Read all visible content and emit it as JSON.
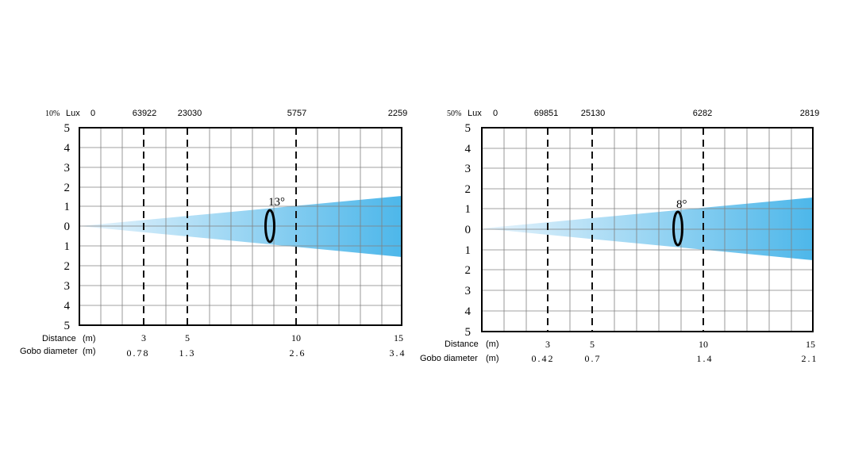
{
  "panels": [
    {
      "lux_prefix": "10%",
      "lux_label": "Lux",
      "lux_values": [
        "0",
        "63922",
        "23030",
        "5757",
        "2259"
      ],
      "y_ticks": [
        "5",
        "4",
        "3",
        "2",
        "1",
        "0",
        "1",
        "2",
        "3",
        "4",
        "5"
      ],
      "angle_label": "13°",
      "distance_label": "Distance",
      "gobo_label": "Gobo diameter",
      "unit": "(m)",
      "distances": [
        "3",
        "5",
        "10",
        "15"
      ],
      "diameters": [
        "0.78",
        "1.3",
        "2.6",
        "3.4"
      ],
      "distance_values": [
        3,
        5,
        10,
        15
      ],
      "max_distance": 15,
      "half_height_at_max": 1.5,
      "colors": {
        "beam_start": "#e8f4fc",
        "beam_end": "#4db7ea",
        "grid": "#808080",
        "frame": "#000000"
      }
    },
    {
      "lux_prefix": "50%",
      "lux_label": "Lux",
      "lux_values": [
        "0",
        "69851",
        "25130",
        "6282",
        "2819"
      ],
      "y_ticks": [
        "5",
        "4",
        "3",
        "2",
        "1",
        "0",
        "1",
        "2",
        "3",
        "4",
        "5"
      ],
      "angle_label": "8°",
      "distance_label": "Distance",
      "gobo_label": "Gobo diameter",
      "unit": "(m)",
      "distances": [
        "3",
        "5",
        "10",
        "15"
      ],
      "diameters": [
        "0.42",
        "0.7",
        "1.4",
        "2.1"
      ],
      "distance_values": [
        3,
        5,
        10,
        15
      ],
      "max_distance": 15,
      "half_height_at_max": 1.5,
      "colors": {
        "beam_start": "#e8f4fc",
        "beam_end": "#4db7ea",
        "grid": "#808080",
        "frame": "#000000"
      }
    }
  ]
}
